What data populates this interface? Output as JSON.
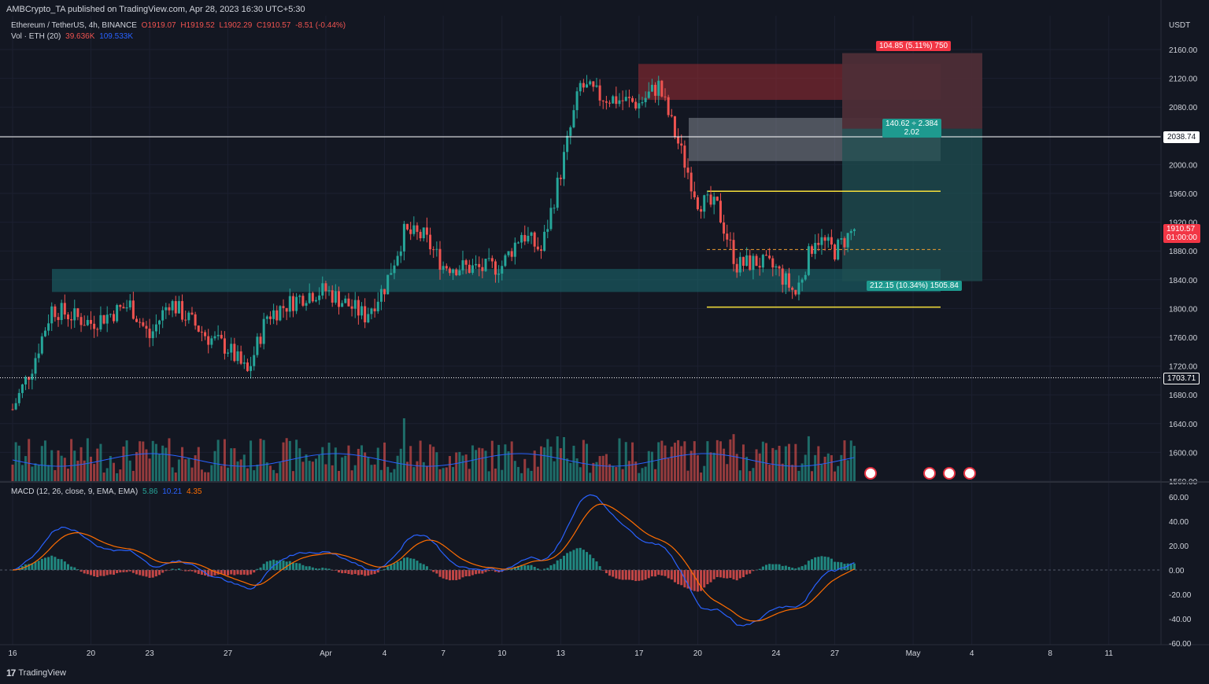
{
  "header": {
    "publisher": "AMBCrypto_TA published on TradingView.com, Apr 28, 2023 16:30 UTC+5:30",
    "symbol": "Ethereum / TetherUS, 4h, BINANCE",
    "ohlc": {
      "o": "O1919.07",
      "h": "H1919.52",
      "l": "L1902.29",
      "c": "C1910.57",
      "chg": "-8.51 (-0.44%)"
    },
    "vol_label": "Vol · ETH (20)",
    "vol_value": "39.636K",
    "vol_ma": "109.533K",
    "macd_label": "MACD (12, 26, close, 9, EMA, EMA)",
    "macd_hist": "5.86",
    "macd_line": "10.21",
    "macd_signal": "4.35"
  },
  "axis": {
    "currency": "USDT",
    "price_ticks": [
      "2160.00",
      "2120.00",
      "2080.00",
      "2040.00",
      "2000.00",
      "1960.00",
      "1920.00",
      "1880.00",
      "1840.00",
      "1800.00",
      "1760.00",
      "1720.00",
      "1680.00",
      "1640.00",
      "1600.00",
      "1560.00"
    ],
    "macd_ticks": [
      "60.00",
      "40.00",
      "20.00",
      "0.00",
      "-20.00",
      "-40.00",
      "-60.00"
    ],
    "time_ticks": [
      "16",
      "20",
      "23",
      "27",
      "Apr",
      "4",
      "7",
      "10",
      "13",
      "17",
      "20",
      "24",
      "27",
      "May",
      "4",
      "8",
      "11"
    ]
  },
  "labels": {
    "level_high": "2038.74",
    "level_low": "1703.71",
    "current_price": "1910.57",
    "countdown": "01:00:00",
    "target_label": "104.85 (5.11%) 750",
    "ratio_label_1": "140.62 ÷ 2.384",
    "ratio_label_2": "2.02",
    "stop_label": "212.15 (10.34%) 1505.84"
  },
  "brand": "TradingView",
  "colors": {
    "background": "#131722",
    "up": "#26a69a",
    "down": "#ef5350",
    "macd_line": "#2962ff",
    "signal_line": "#ff6d00",
    "range_lines": "#f7e03a",
    "support_box": "#1b6e73",
    "supply_box": "#9b2c33",
    "grey_box": "#9aa0a8",
    "target_zone": "#1f4f52",
    "stop_zone": "#5b2530"
  },
  "chart_data": {
    "type": "candlestick",
    "title": "Ethereum / TetherUS, 4h, BINANCE",
    "ylim": [
      1560,
      2175
    ],
    "y_unit": "USDT",
    "date_axis": [
      "Mar 16",
      "Mar 20",
      "Mar 23",
      "Mar 27",
      "Apr 1",
      "Apr 4",
      "Apr 7",
      "Apr 10",
      "Apr 13",
      "Apr 17",
      "Apr 20",
      "Apr 24",
      "Apr 27",
      "May 1",
      "May 4",
      "May 8",
      "May 11"
    ],
    "approx_close_path": [
      {
        "date": "Mar 16",
        "close": 1660
      },
      {
        "date": "Mar 17",
        "close": 1720
      },
      {
        "date": "Mar 18",
        "close": 1800
      },
      {
        "date": "Mar 20",
        "close": 1780
      },
      {
        "date": "Mar 22",
        "close": 1805
      },
      {
        "date": "Mar 23",
        "close": 1760
      },
      {
        "date": "Mar 24",
        "close": 1810
      },
      {
        "date": "Mar 26",
        "close": 1760
      },
      {
        "date": "Mar 27",
        "close": 1745
      },
      {
        "date": "Mar 28",
        "close": 1710
      },
      {
        "date": "Mar 29",
        "close": 1790
      },
      {
        "date": "Mar 31",
        "close": 1820
      },
      {
        "date": "Apr 1",
        "close": 1825
      },
      {
        "date": "Apr 3",
        "close": 1790
      },
      {
        "date": "Apr 4",
        "close": 1830
      },
      {
        "date": "Apr 5",
        "close": 1905
      },
      {
        "date": "Apr 6",
        "close": 1900
      },
      {
        "date": "Apr 7",
        "close": 1860
      },
      {
        "date": "Apr 9",
        "close": 1855
      },
      {
        "date": "Apr 10",
        "close": 1860
      },
      {
        "date": "Apr 11",
        "close": 1905
      },
      {
        "date": "Apr 12",
        "close": 1880
      },
      {
        "date": "Apr 13",
        "close": 1990
      },
      {
        "date": "Apr 14",
        "close": 2110
      },
      {
        "date": "Apr 15",
        "close": 2095
      },
      {
        "date": "Apr 16",
        "close": 2090
      },
      {
        "date": "Apr 17",
        "close": 2085
      },
      {
        "date": "Apr 18",
        "close": 2110
      },
      {
        "date": "Apr 19",
        "close": 2030
      },
      {
        "date": "Apr 20",
        "close": 1950
      },
      {
        "date": "Apr 21",
        "close": 1940
      },
      {
        "date": "Apr 22",
        "close": 1860
      },
      {
        "date": "Apr 23",
        "close": 1865
      },
      {
        "date": "Apr 24",
        "close": 1855
      },
      {
        "date": "Apr 25",
        "close": 1820
      },
      {
        "date": "Apr 26",
        "close": 1900
      },
      {
        "date": "Apr 27",
        "close": 1880
      },
      {
        "date": "Apr 28",
        "close": 1910.57
      }
    ],
    "horizontal_levels": [
      2038.74,
      1703.71
    ],
    "range_high": 1963,
    "range_low": 1802,
    "range_mid": 1882,
    "support_zone": [
      1823,
      1855
    ],
    "supply_zone": [
      2090,
      2140
    ],
    "grey_zone": [
      2005,
      2065
    ],
    "target_zone": [
      1838,
      2155
    ],
    "stop_zone": [
      2050,
      2155
    ],
    "volume_ma": 109.533,
    "volume_last": 39.636,
    "macd": {
      "hist": 5.86,
      "macd": 10.21,
      "signal": 4.35,
      "ylim": [
        -60,
        65
      ]
    }
  }
}
